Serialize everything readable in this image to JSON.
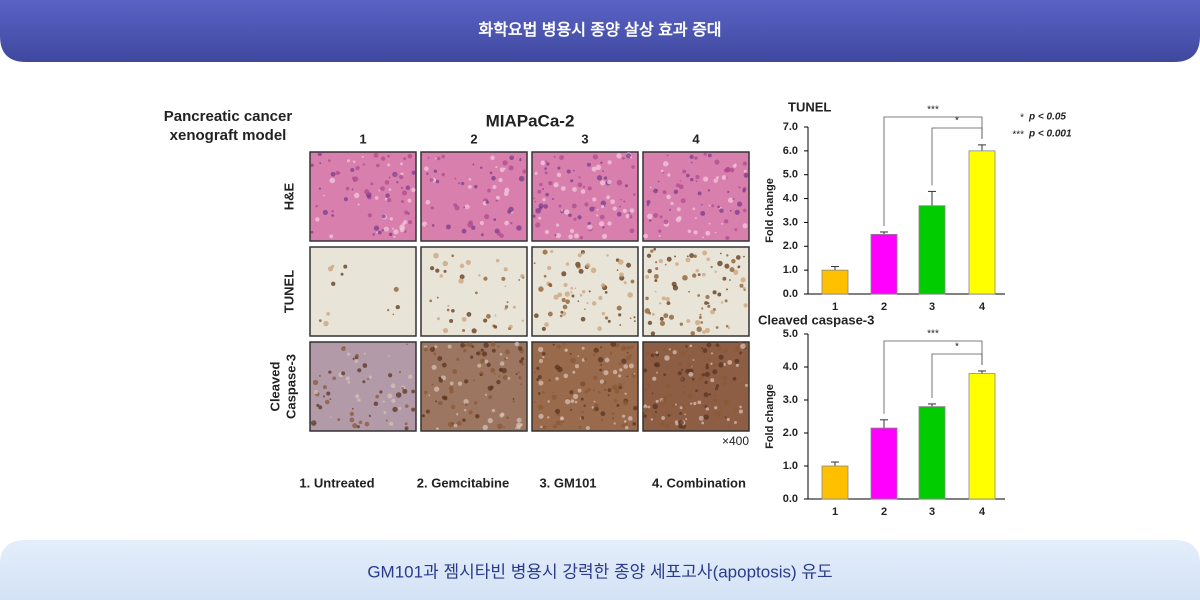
{
  "header": {
    "title": "화학요법 병용시 종양 살상 효과 증대"
  },
  "footer": {
    "caption": "GM101과 젬시타빈 병용시 강력한 종양 세포고사(apoptosis) 유도"
  },
  "figure": {
    "model_label": [
      "Pancreatic cancer",
      "xenograft model"
    ],
    "cell_line": "MIAPaCa-2",
    "columns": [
      "1",
      "2",
      "3",
      "4"
    ],
    "rows": [
      [
        "H&E"
      ],
      [
        "TUNEL"
      ],
      [
        "Cleaved",
        "Caspase-3"
      ]
    ],
    "magnification": "×400",
    "groups": [
      "1. Untreated",
      "2. Gemcitabine",
      "3. GM101",
      "4. Combination"
    ],
    "significance_notes": [
      {
        "mark": "*",
        "label": "p < 0.05"
      },
      {
        "mark": "***",
        "label": "p < 0.001"
      }
    ]
  },
  "chart_data": [
    {
      "type": "bar",
      "title": "TUNEL",
      "y_label": "Fold change",
      "categories": [
        "1",
        "2",
        "3",
        "4"
      ],
      "values": [
        1.0,
        2.5,
        3.7,
        6.0
      ],
      "errors": [
        0.15,
        0.1,
        0.6,
        0.25
      ],
      "colors": [
        "#ffc000",
        "#ff00ff",
        "#00cc00",
        "#ffff00"
      ],
      "ylim": [
        0,
        7
      ],
      "yticks": [
        {
          "value": 0,
          "label": "0.0"
        },
        {
          "value": 1,
          "label": "1.0"
        },
        {
          "value": 2,
          "label": "2.0"
        },
        {
          "value": 3,
          "label": "3.0"
        },
        {
          "value": 4,
          "label": "4.0"
        },
        {
          "value": 5,
          "label": "5.0"
        },
        {
          "value": 6,
          "label": "6.0"
        },
        {
          "value": 7,
          "label": "7.0"
        }
      ],
      "annotations": [
        "***",
        "*"
      ]
    },
    {
      "type": "bar",
      "title": "Cleaved caspase-3",
      "y_label": "Fold change",
      "categories": [
        "1",
        "2",
        "3",
        "4"
      ],
      "values": [
        1.0,
        2.15,
        2.8,
        3.8
      ],
      "errors": [
        0.12,
        0.25,
        0.08,
        0.08
      ],
      "colors": [
        "#ffc000",
        "#ff00ff",
        "#00cc00",
        "#ffff00"
      ],
      "ylim": [
        0,
        5
      ],
      "yticks": [
        {
          "value": 0,
          "label": "0.0"
        },
        {
          "value": 1,
          "label": "1.0"
        },
        {
          "value": 2,
          "label": "2.0"
        },
        {
          "value": 3,
          "label": "3.0"
        },
        {
          "value": 4,
          "label": "4.0"
        },
        {
          "value": 5,
          "label": "5.0"
        }
      ],
      "annotations": [
        "***",
        "*"
      ]
    }
  ]
}
